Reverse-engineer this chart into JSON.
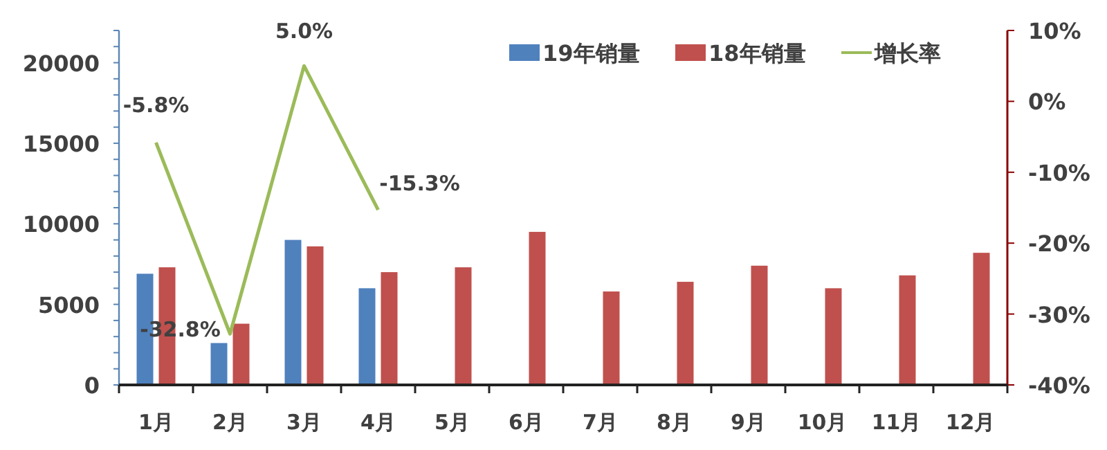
{
  "chart_data": {
    "type": "bar",
    "categories": [
      "1月",
      "2月",
      "3月",
      "4月",
      "5月",
      "6月",
      "7月",
      "8月",
      "9月",
      "10月",
      "11月",
      "12月"
    ],
    "series": [
      {
        "name": "19年销量",
        "color": "#4f81bd",
        "values": [
          6900,
          2600,
          9000,
          6000,
          null,
          null,
          null,
          null,
          null,
          null,
          null,
          null
        ]
      },
      {
        "name": "18年销量",
        "color": "#c0504d",
        "values": [
          7300,
          3800,
          8600,
          7000,
          7300,
          9500,
          5800,
          6400,
          7400,
          6000,
          6800,
          8200
        ]
      },
      {
        "name": "增长率",
        "type": "line",
        "axis": "y2",
        "color": "#9bbb59",
        "values": [
          -5.8,
          -32.8,
          5.0,
          -15.3,
          null,
          null,
          null,
          null,
          null,
          null,
          null,
          null
        ],
        "value_labels": [
          "-5.8%",
          "-32.8%",
          "5.0%",
          "-15.3%",
          null,
          null,
          null,
          null,
          null,
          null,
          null,
          null
        ]
      }
    ],
    "ylim": [
      0,
      22000
    ],
    "yticks": [
      0,
      5000,
      10000,
      15000,
      20000
    ],
    "y2lim": [
      -40,
      10
    ],
    "y2ticks": [
      {
        "value": -40,
        "label": "-40%"
      },
      {
        "value": -30,
        "label": "-30%"
      },
      {
        "value": -20,
        "label": "-20%"
      },
      {
        "value": -10,
        "label": "-10%"
      },
      {
        "value": 0,
        "label": "0%"
      },
      {
        "value": 10,
        "label": "10%"
      }
    ],
    "legend": "top right",
    "grid": false
  }
}
